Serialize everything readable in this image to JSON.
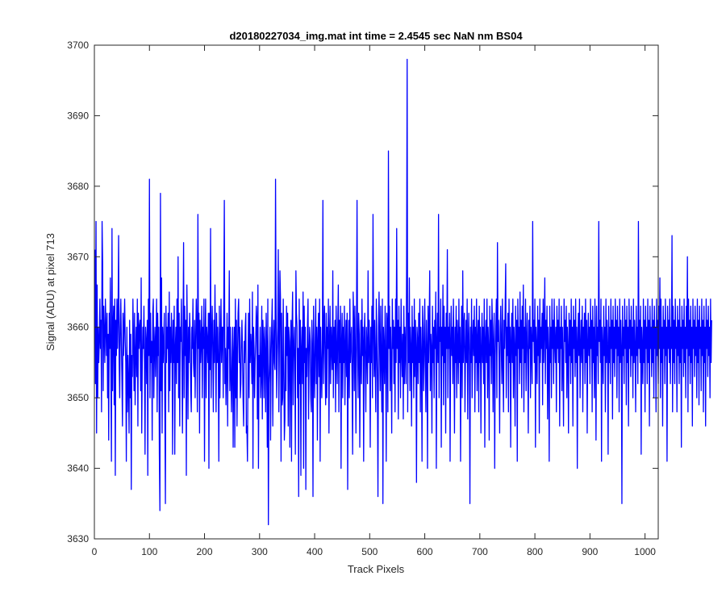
{
  "chart_data": {
    "type": "line",
    "title": "d20180227034_img.mat int time = 2.4545 sec  NaN nm BS04",
    "xlabel": "Track Pixels",
    "ylabel": "Signal (ADU) at pixel 713",
    "xlim": [
      0,
      1024
    ],
    "ylim": [
      3630,
      3700
    ],
    "xticks": [
      0,
      100,
      200,
      300,
      400,
      500,
      600,
      700,
      800,
      900,
      1000
    ],
    "yticks": [
      3630,
      3640,
      3650,
      3660,
      3670,
      3680,
      3690,
      3700
    ],
    "grid": false,
    "legend": "none",
    "line_color": "#0000ff",
    "series": [
      {
        "x_start": 1,
        "x_step": 1,
        "values": [
          3671,
          3652,
          3675,
          3645,
          3666,
          3650,
          3660,
          3655,
          3658,
          3664,
          3657,
          3661,
          3648,
          3675,
          3669,
          3651,
          3663,
          3659,
          3655,
          3664,
          3660,
          3656,
          3662,
          3650,
          3659,
          3644,
          3662,
          3657,
          3667,
          3654,
          3641,
          3674,
          3651,
          3660,
          3663,
          3649,
          3664,
          3639,
          3661,
          3656,
          3664,
          3657,
          3662,
          3673,
          3655,
          3650,
          3660,
          3664,
          3658,
          3653,
          3646,
          3662,
          3656,
          3660,
          3664,
          3658,
          3655,
          3641,
          3660,
          3648,
          3656,
          3652,
          3645,
          3661,
          3650,
          3659,
          3637,
          3656,
          3653,
          3664,
          3658,
          3651,
          3662,
          3649,
          3656,
          3660,
          3653,
          3664,
          3646,
          3662,
          3657,
          3660,
          3661,
          3651,
          3667,
          3645,
          3655,
          3660,
          3657,
          3663,
          3655,
          3642,
          3660,
          3658,
          3652,
          3661,
          3639,
          3664,
          3656,
          3681,
          3650,
          3662,
          3655,
          3658,
          3644,
          3662,
          3664,
          3650,
          3657,
          3660,
          3653,
          3658,
          3664,
          3648,
          3662,
          3656,
          3660,
          3642,
          3634,
          3679,
          3651,
          3667,
          3645,
          3660,
          3655,
          3658,
          3662,
          3648,
          3635,
          3663,
          3655,
          3660,
          3657,
          3662,
          3648,
          3665,
          3651,
          3660,
          3655,
          3662,
          3658,
          3642,
          3661,
          3655,
          3663,
          3642,
          3657,
          3660,
          3652,
          3664,
          3655,
          3670,
          3650,
          3662,
          3646,
          3660,
          3658,
          3664,
          3655,
          3645,
          3659,
          3672,
          3650,
          3663,
          3656,
          3661,
          3639,
          3666,
          3658,
          3647,
          3660,
          3655,
          3662,
          3659,
          3651,
          3648,
          3660,
          3657,
          3664,
          3655,
          3653,
          3661,
          3650,
          3658,
          3664,
          3660,
          3648,
          3676,
          3657,
          3662,
          3645,
          3661,
          3655,
          3658,
          3663,
          3650,
          3660,
          3657,
          3664,
          3641,
          3658,
          3664,
          3650,
          3660,
          3658,
          3655,
          3662,
          3640,
          3662,
          3654,
          3674,
          3650,
          3658,
          3663,
          3657,
          3648,
          3661,
          3655,
          3666,
          3657,
          3648,
          3662,
          3655,
          3660,
          3655,
          3641,
          3663,
          3650,
          3658,
          3664,
          3655,
          3660,
          3660,
          3650,
          3664,
          3678,
          3652,
          3657,
          3649,
          3655,
          3662,
          3646,
          3660,
          3657,
          3668,
          3651,
          3660,
          3653,
          3648,
          3655,
          3660,
          3643,
          3656,
          3660,
          3643,
          3664,
          3650,
          3661,
          3646,
          3656,
          3662,
          3664,
          3655,
          3660,
          3650,
          3652,
          3658,
          3661,
          3656,
          3650,
          3646,
          3658,
          3655,
          3660,
          3662,
          3645,
          3646,
          3641,
          3655,
          3662,
          3650,
          3664,
          3655,
          3659,
          3657,
          3652,
          3665,
          3640,
          3660,
          3657,
          3650,
          3655,
          3658,
          3663,
          3661,
          3647,
          3666,
          3640,
          3656,
          3653,
          3660,
          3650,
          3653,
          3663,
          3647,
          3661,
          3658,
          3650,
          3660,
          3656,
          3648,
          3662,
          3657,
          3643,
          3664,
          3632,
          3652,
          3655,
          3660,
          3644,
          3656,
          3660,
          3664,
          3646,
          3657,
          3661,
          3655,
          3654,
          3681,
          3662,
          3650,
          3656,
          3660,
          3671,
          3648,
          3658,
          3668,
          3664,
          3641,
          3662,
          3649,
          3650,
          3664,
          3655,
          3644,
          3647,
          3660,
          3651,
          3663,
          3656,
          3662,
          3646,
          3660,
          3658,
          3643,
          3657,
          3661,
          3641,
          3660,
          3665,
          3649,
          3657,
          3660,
          3655,
          3642,
          3668,
          3662,
          3660,
          3650,
          3657,
          3636,
          3664,
          3652,
          3661,
          3639,
          3657,
          3660,
          3652,
          3665,
          3640,
          3663,
          3655,
          3660,
          3637,
          3657,
          3653,
          3660,
          3664,
          3647,
          3656,
          3660,
          3658,
          3650,
          3648,
          3661,
          3657,
          3636,
          3663,
          3655,
          3650,
          3658,
          3664,
          3652,
          3660,
          3644,
          3658,
          3662,
          3653,
          3664,
          3641,
          3660,
          3655,
          3650,
          3657,
          3678,
          3652,
          3660,
          3663,
          3655,
          3649,
          3662,
          3650,
          3660,
          3657,
          3664,
          3645,
          3658,
          3663,
          3652,
          3660,
          3657,
          3654,
          3668,
          3650,
          3660,
          3655,
          3661,
          3648,
          3663,
          3657,
          3652,
          3660,
          3666,
          3648,
          3661,
          3655,
          3663,
          3640,
          3658,
          3662,
          3650,
          3660,
          3655,
          3663,
          3649,
          3657,
          3661,
          3653,
          3662,
          3637,
          3656,
          3661,
          3650,
          3664,
          3655,
          3658,
          3660,
          3652,
          3642,
          3665,
          3661,
          3651,
          3663,
          3656,
          3645,
          3660,
          3678,
          3657,
          3650,
          3662,
          3659,
          3643,
          3655,
          3661,
          3652,
          3664,
          3656,
          3660,
          3641,
          3658,
          3662,
          3655,
          3648,
          3660,
          3657,
          3652,
          3668,
          3655,
          3661,
          3657,
          3643,
          3660,
          3655,
          3663,
          3650,
          3676,
          3660,
          3653,
          3661,
          3655,
          3648,
          3664,
          3658,
          3652,
          3636,
          3660,
          3665,
          3657,
          3651,
          3663,
          3655,
          3648,
          3664,
          3635,
          3660,
          3657,
          3652,
          3663,
          3656,
          3641,
          3662,
          3660,
          3648,
          3685,
          3657,
          3663,
          3651,
          3660,
          3655,
          3645,
          3664,
          3657,
          3661,
          3652,
          3660,
          3648,
          3664,
          3655,
          3674,
          3657,
          3661,
          3647,
          3663,
          3655,
          3660,
          3650,
          3664,
          3657,
          3653,
          3659,
          3647,
          3663,
          3652,
          3660,
          3657,
          3652,
          3668,
          3698,
          3648,
          3662,
          3655,
          3667,
          3651,
          3660,
          3657,
          3646,
          3663,
          3655,
          3660,
          3650,
          3664,
          3653,
          3661,
          3657,
          3638,
          3660,
          3658,
          3652,
          3662,
          3655,
          3664,
          3648,
          3660,
          3656,
          3641,
          3663,
          3660,
          3651,
          3657,
          3664,
          3655,
          3648,
          3661,
          3657,
          3640,
          3663,
          3655,
          3660,
          3668,
          3651,
          3659,
          3657,
          3645,
          3663,
          3655,
          3660,
          3650,
          3661,
          3657,
          3665,
          3640,
          3658,
          3662,
          3655,
          3676,
          3650,
          3660,
          3658,
          3664,
          3643,
          3660,
          3656,
          3666,
          3649,
          3663,
          3655,
          3660,
          3645,
          3662,
          3657,
          3671,
          3650,
          3660,
          3657,
          3662,
          3641,
          3658,
          3663,
          3656,
          3660,
          3652,
          3664,
          3657,
          3645,
          3660,
          3655,
          3663,
          3650,
          3661,
          3658,
          3652,
          3664,
          3655,
          3660,
          3641,
          3657,
          3663,
          3650,
          3668,
          3655,
          3660,
          3662,
          3648,
          3656,
          3661,
          3655,
          3664,
          3647,
          3658,
          3662,
          3656,
          3635,
          3660,
          3655,
          3664,
          3650,
          3658,
          3661,
          3656,
          3663,
          3648,
          3660,
          3655,
          3664,
          3651,
          3658,
          3661,
          3648,
          3663,
          3655,
          3660,
          3645,
          3657,
          3662,
          3655,
          3660,
          3652,
          3664,
          3643,
          3658,
          3661,
          3655,
          3664,
          3650,
          3660,
          3657,
          3644,
          3663,
          3656,
          3661,
          3652,
          3664,
          3660,
          3648,
          3658,
          3662,
          3640,
          3656,
          3660,
          3664,
          3650,
          3672,
          3658,
          3661,
          3655,
          3645,
          3660,
          3663,
          3657,
          3652,
          3664,
          3655,
          3648,
          3661,
          3657,
          3663,
          3669,
          3650,
          3660,
          3656,
          3662,
          3648,
          3664,
          3655,
          3660,
          3643,
          3658,
          3662,
          3655,
          3664,
          3650,
          3660,
          3657,
          3646,
          3663,
          3656,
          3661,
          3641,
          3664,
          3657,
          3660,
          3652,
          3665,
          3655,
          3661,
          3650,
          3663,
          3657,
          3666,
          3648,
          3660,
          3655,
          3664,
          3651,
          3658,
          3662,
          3656,
          3645,
          3661,
          3657,
          3663,
          3650,
          3660,
          3657,
          3652,
          3675,
          3658,
          3661,
          3655,
          3664,
          3643,
          3660,
          3657,
          3652,
          3663,
          3656,
          3661,
          3645,
          3664,
          3655,
          3660,
          3657,
          3662,
          3649,
          3664,
          3655,
          3660,
          3667,
          3652,
          3661,
          3657,
          3663,
          3647,
          3660,
          3656,
          3641,
          3663,
          3655,
          3660,
          3650,
          3664,
          3657,
          3661,
          3652,
          3664,
          3658,
          3655,
          3660,
          3648,
          3663,
          3657,
          3661,
          3655,
          3664,
          3646,
          3660,
          3657,
          3663,
          3651,
          3660,
          3655,
          3646,
          3664,
          3658,
          3661,
          3655,
          3663,
          3650,
          3660,
          3657,
          3645,
          3662,
          3656,
          3661,
          3652,
          3664,
          3655,
          3660,
          3646,
          3663,
          3657,
          3661,
          3653,
          3664,
          3655,
          3660,
          3640,
          3658,
          3662,
          3656,
          3664,
          3650,
          3657,
          3661,
          3655,
          3663,
          3648,
          3660,
          3657,
          3662,
          3652,
          3664,
          3655,
          3661,
          3645,
          3658,
          3662,
          3656,
          3660,
          3652,
          3664,
          3657,
          3661,
          3648,
          3663,
          3655,
          3660,
          3650,
          3664,
          3657,
          3644,
          3663,
          3656,
          3660,
          3652,
          3675,
          3658,
          3661,
          3655,
          3664,
          3641,
          3660,
          3657,
          3652,
          3663,
          3656,
          3660,
          3648,
          3664,
          3655,
          3661,
          3657,
          3642,
          3663,
          3655,
          3660,
          3652,
          3664,
          3657,
          3661,
          3647,
          3663,
          3655,
          3660,
          3653,
          3664,
          3657,
          3661,
          3650,
          3663,
          3656,
          3660,
          3648,
          3664,
          3655,
          3661,
          3657,
          3635,
          3663,
          3656,
          3660,
          3652,
          3664,
          3657,
          3661,
          3649,
          3663,
          3655,
          3660,
          3646,
          3664,
          3657,
          3661,
          3653,
          3663,
          3656,
          3660,
          3650,
          3664,
          3655,
          3661,
          3657,
          3648,
          3663,
          3656,
          3660,
          3652,
          3675,
          3657,
          3661,
          3655,
          3663,
          3642,
          3660,
          3657,
          3652,
          3664,
          3655,
          3661,
          3648,
          3663,
          3657,
          3660,
          3652,
          3664,
          3655,
          3661,
          3646,
          3663,
          3657,
          3660,
          3653,
          3664,
          3655,
          3661,
          3650,
          3663,
          3657,
          3660,
          3648,
          3664,
          3656,
          3661,
          3652,
          3663,
          3657,
          3667,
          3650,
          3664,
          3655,
          3660,
          3646,
          3663,
          3657,
          3661,
          3652,
          3664,
          3656,
          3660,
          3641,
          3663,
          3657,
          3661,
          3655,
          3664,
          3652,
          3660,
          3657,
          3673,
          3648,
          3663,
          3655,
          3661,
          3652,
          3664,
          3657,
          3660,
          3648,
          3663,
          3656,
          3661,
          3652,
          3664,
          3655,
          3660,
          3643,
          3663,
          3657,
          3661,
          3653,
          3664,
          3655,
          3660,
          3650,
          3663,
          3657,
          3670,
          3648,
          3664,
          3656,
          3661,
          3652,
          3663,
          3655,
          3660,
          3646,
          3664,
          3657,
          3661,
          3653,
          3663,
          3656,
          3660,
          3650,
          3664,
          3655,
          3661,
          3649,
          3663,
          3657,
          3660,
          3651,
          3664,
          3656,
          3661,
          3648,
          3663,
          3655,
          3660,
          3646,
          3664,
          3657,
          3661,
          3653,
          3663,
          3656,
          3660,
          3650,
          3664,
          3655,
          3661
        ]
      }
    ]
  }
}
